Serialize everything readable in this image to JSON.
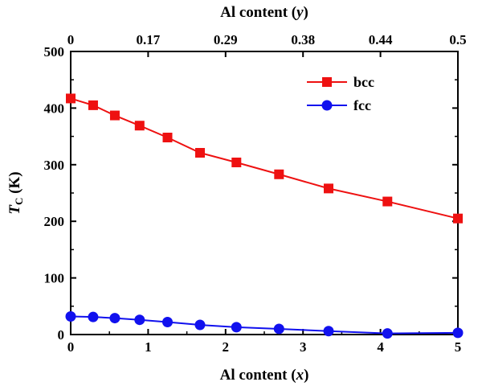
{
  "chart_data": {
    "type": "line",
    "x_axis": {
      "label_prefix": "Al content (",
      "label_var": "x",
      "label_suffix": ")",
      "range": [
        0,
        5
      ],
      "ticks": [
        0,
        1,
        2,
        3,
        4,
        5
      ],
      "tick_labels": [
        "0",
        "1",
        "2",
        "3",
        "4",
        "5"
      ]
    },
    "top_axis": {
      "label_prefix": "Al content (",
      "label_var": "y",
      "label_suffix": ")",
      "tick_labels": [
        "0",
        "0.17",
        "0.29",
        "0.38",
        "0.44",
        "0.5"
      ],
      "tick_x": [
        0,
        1,
        2,
        3,
        4,
        5
      ]
    },
    "y_axis": {
      "label_main": "T",
      "label_sub": "C",
      "label_unit": " (K)",
      "range": [
        0,
        500
      ],
      "ticks": [
        0,
        100,
        200,
        300,
        400,
        500
      ],
      "tick_labels": [
        "0",
        "100",
        "200",
        "300",
        "400",
        "500"
      ]
    },
    "grid": false,
    "legend_position": "top-right",
    "series": [
      {
        "name": "bcc",
        "color": "#ee1111",
        "marker": "square",
        "x": [
          0,
          0.29,
          0.57,
          0.89,
          1.25,
          1.67,
          2.14,
          2.69,
          3.33,
          4.09,
          5
        ],
        "y": [
          417,
          405,
          387,
          369,
          348,
          321,
          304,
          283,
          258,
          235,
          205
        ]
      },
      {
        "name": "fcc",
        "color": "#1111ee",
        "marker": "circle",
        "x": [
          0,
          0.29,
          0.57,
          0.89,
          1.25,
          1.67,
          2.14,
          2.69,
          3.33,
          4.09,
          5
        ],
        "y": [
          32,
          31,
          29,
          26,
          22,
          17,
          13,
          10,
          6,
          2,
          3
        ]
      }
    ]
  }
}
